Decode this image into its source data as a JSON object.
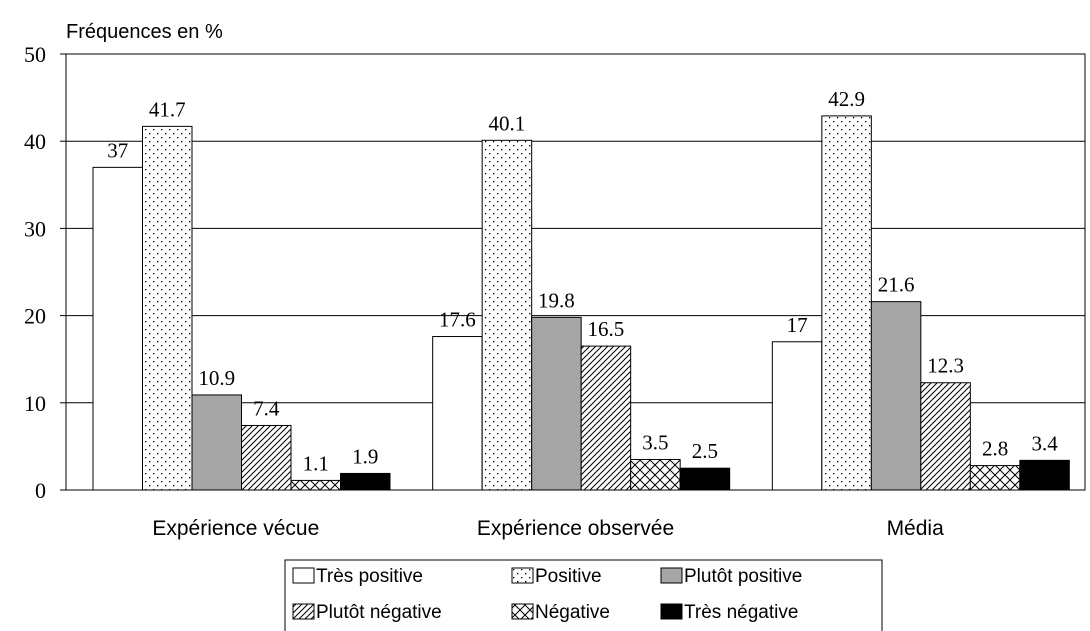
{
  "chart_data": {
    "type": "bar",
    "ylabel": "Fréquences en %",
    "xlabel": "",
    "ylim": [
      0,
      50
    ],
    "yticks": [
      0,
      10,
      20,
      30,
      40,
      50
    ],
    "grid": true,
    "legend_position": "bottom",
    "categories": [
      "Expérience vécue",
      "Expérience observée",
      "Média"
    ],
    "series": [
      {
        "name": "Très positive",
        "values": [
          37,
          17.6,
          17
        ],
        "labels": [
          "37",
          "17.6",
          "17"
        ],
        "fill": "white"
      },
      {
        "name": "Positive",
        "values": [
          41.7,
          40.1,
          42.9
        ],
        "labels": [
          "41.7",
          "40.1",
          "42.9"
        ],
        "fill": "dots"
      },
      {
        "name": "Plutôt positive",
        "values": [
          10.9,
          19.8,
          21.6
        ],
        "labels": [
          "10.9",
          "19.8",
          "21.6"
        ],
        "fill": "gray"
      },
      {
        "name": "Plutôt négative",
        "values": [
          7.4,
          16.5,
          12.3
        ],
        "labels": [
          "7.4",
          "16.5",
          "12.3"
        ],
        "fill": "diagonal"
      },
      {
        "name": "Négative",
        "values": [
          1.1,
          3.5,
          2.8
        ],
        "labels": [
          "1.1",
          "3.5",
          "2.8"
        ],
        "fill": "cross"
      },
      {
        "name": "Très négative",
        "values": [
          1.9,
          2.5,
          3.4
        ],
        "labels": [
          "1.9",
          "2.5",
          "3.4"
        ],
        "fill": "black"
      }
    ]
  },
  "colors": {
    "gray": "#a6a6a6",
    "black": "#000000",
    "white": "#ffffff"
  }
}
